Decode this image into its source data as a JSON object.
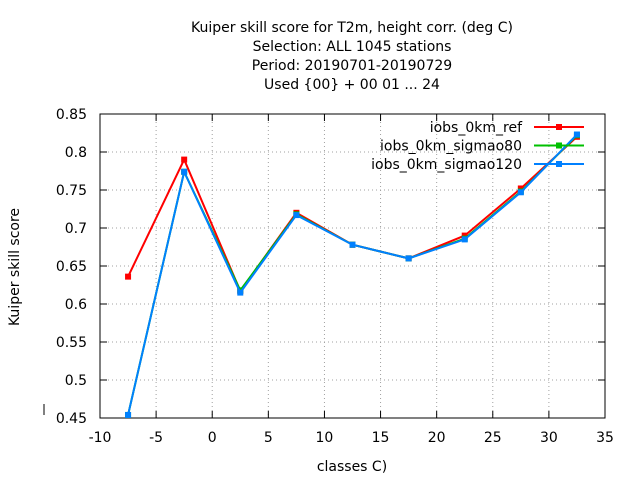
{
  "chart_data": {
    "type": "line",
    "title_lines": [
      "Kuiper skill score  for T2m, height corr. (deg C)",
      "Selection: ALL   1045 stations",
      "Period: 20190701-20190729",
      "Used {00} + 00 01 ... 24"
    ],
    "xlabel": "classes C)",
    "ylabel": "Kuiper skill score",
    "xlim": [
      -10,
      35
    ],
    "ylim": [
      0.45,
      0.85
    ],
    "xticks": [
      "-10",
      "-5",
      "0",
      "5",
      "10",
      "15",
      "20",
      "25",
      "30",
      "35"
    ],
    "yticks": [
      "0.45",
      "0.5",
      "0.55",
      "0.6",
      "0.65",
      "0.7",
      "0.75",
      "0.8",
      "0.85"
    ],
    "grid": true,
    "legend_position": "top-right",
    "x": [
      -7.5,
      -2.5,
      2.5,
      7.5,
      12.5,
      17.5,
      22.5,
      27.5,
      32.5
    ],
    "series": [
      {
        "name": "iobs_0km_ref",
        "color": "#ff0000",
        "values": [
          0.636,
          0.79,
          0.617,
          0.72,
          0.678,
          0.66,
          0.69,
          0.752,
          0.82
        ]
      },
      {
        "name": "iobs_0km_sigmao80",
        "color": "#00c000",
        "values": [
          0.454,
          0.774,
          0.618,
          0.718,
          0.678,
          0.66,
          0.686,
          0.748,
          0.822
        ]
      },
      {
        "name": "iobs_0km_sigmao120",
        "color": "#0080ff",
        "values": [
          0.454,
          0.774,
          0.615,
          0.717,
          0.678,
          0.66,
          0.685,
          0.747,
          0.823
        ]
      }
    ]
  }
}
